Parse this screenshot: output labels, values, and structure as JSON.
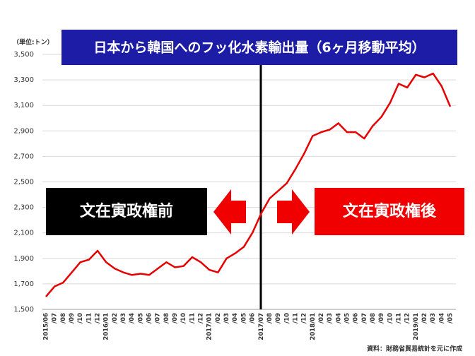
{
  "chart_data": {
    "type": "line",
    "title": "日本から韓国へのフッ化水素輸出量（6ヶ月移動平均）",
    "unit": "（単位:トン）",
    "annotations": [
      "文在寅政権前",
      "文在寅政権後"
    ],
    "source": "資料：財務省貿易統計を元に作成",
    "categories": [
      "2015/06",
      "/07",
      "/08",
      "/09",
      "/10",
      "/11",
      "/12",
      "2016/01",
      "/02",
      "/03",
      "/04",
      "/05",
      "/06",
      "/07",
      "/08",
      "/09",
      "/10",
      "/11",
      "/12",
      "2017/01",
      "/02",
      "/03",
      "/04",
      "/05",
      "/06",
      "2017/07",
      "/08",
      "/09",
      "/10",
      "/11",
      "/12",
      "2018/01",
      "/02",
      "/03",
      "/04",
      "/05",
      "/06",
      "/07",
      "/08",
      "/09",
      "/10",
      "/11",
      "/12",
      "2019/01",
      "/02",
      "/03",
      "/04",
      "/05"
    ],
    "series": [
      {
        "name": "フッ化水素輸出量",
        "color": "#e60000",
        "values": [
          1600,
          1680,
          1710,
          1790,
          1870,
          1890,
          1960,
          1870,
          1820,
          1790,
          1770,
          1780,
          1770,
          1820,
          1870,
          1830,
          1840,
          1910,
          1870,
          1810,
          1790,
          1900,
          1940,
          1990,
          2100,
          2250,
          2370,
          2430,
          2490,
          2600,
          2720,
          2860,
          2890,
          2910,
          2960,
          2890,
          2890,
          2840,
          2940,
          3010,
          3120,
          3270,
          3240,
          3340,
          3320,
          3350,
          3250,
          3090
        ]
      }
    ],
    "ylim": [
      1500,
      3500
    ],
    "yticks": [
      {
        "value": 1500,
        "label": "1,500"
      },
      {
        "value": 1700,
        "label": "1,700"
      },
      {
        "value": 1900,
        "label": "1,900"
      },
      {
        "value": 2100,
        "label": "2,100"
      },
      {
        "value": 2300,
        "label": "2,300"
      },
      {
        "value": 2500,
        "label": "2,500"
      },
      {
        "value": 2700,
        "label": "2,700"
      },
      {
        "value": 2900,
        "label": "2,900"
      },
      {
        "value": 3100,
        "label": "3,100"
      },
      {
        "value": 3300,
        "label": "3,300"
      },
      {
        "value": 3500,
        "label": "3,500"
      }
    ],
    "grid": true
  }
}
